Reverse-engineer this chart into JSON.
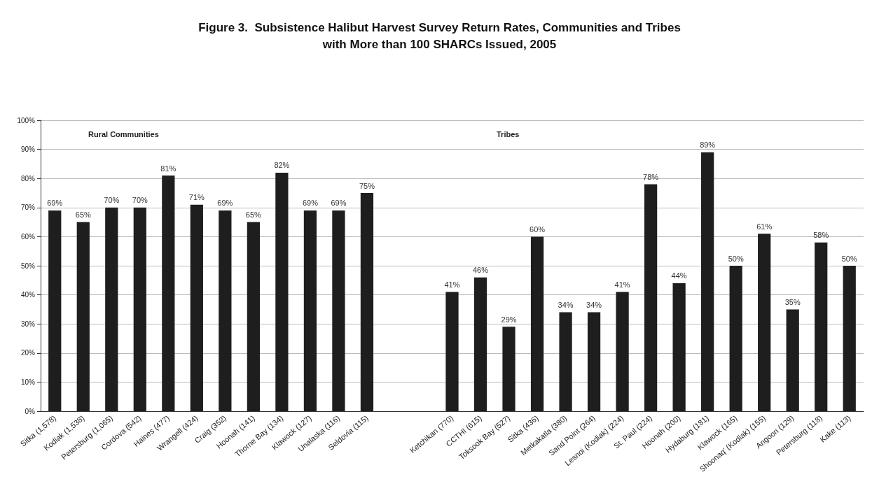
{
  "chart_data": {
    "type": "bar",
    "title": "Figure 3.  Subsistence Halibut Harvest Survey Return Rates, Communities and Tribes\nwith More than 100 SHARCs Issued, 2005",
    "categories": [
      "Sitka (1,578)",
      "Kodiak (1,538)",
      "Petersburg (1,065)",
      "Cordova (542)",
      "Haines (477)",
      "Wrangell (424)",
      "Craig (352)",
      "Hoonah (141)",
      "Thorne Bay (134)",
      "Klawock (127)",
      "Unalaska (116)",
      "Seldovia (115)",
      null,
      null,
      "Ketchikan (770)",
      "CCTHI (615)",
      "Toksook Bay (527)",
      "Sitka (436)",
      "Metkakatla (380)",
      "Sand Point (264)",
      "Lesnoi (Kodiak) (224)",
      "St. Paul (224)",
      "Hoonah (200)",
      "Hydaburg (181)",
      "Klawock (165)",
      "Shoonaq' (Kodiak) (155)",
      "Angoon (129)",
      "Petersburg (118)",
      "Kake (113)"
    ],
    "values": [
      69,
      65,
      70,
      70,
      81,
      71,
      69,
      65,
      82,
      69,
      69,
      75,
      null,
      null,
      41,
      46,
      29,
      60,
      34,
      34,
      41,
      78,
      44,
      89,
      50,
      61,
      35,
      58,
      50
    ],
    "color": "#1e1e1e",
    "ylim": [
      0,
      100
    ],
    "yticks": [
      {
        "value": 0,
        "label": "0%"
      },
      {
        "value": 10,
        "label": "10%"
      },
      {
        "value": 20,
        "label": "20%"
      },
      {
        "value": 30,
        "label": "30%"
      },
      {
        "value": 40,
        "label": "40%"
      },
      {
        "value": 50,
        "label": "50%"
      },
      {
        "value": 60,
        "label": "60%"
      },
      {
        "value": 70,
        "label": "70%"
      },
      {
        "value": 80,
        "label": "80%"
      },
      {
        "value": 90,
        "label": "90%"
      },
      {
        "value": 100,
        "label": "100%"
      }
    ],
    "grid": "y",
    "value_labels": [
      "69%",
      "65%",
      "70%",
      "70%",
      "81%",
      "71%",
      "69%",
      "65%",
      "82%",
      "69%",
      "69%",
      "75%",
      null,
      null,
      "41%",
      "46%",
      "29%",
      "60%",
      "34%",
      "34%",
      "41%",
      "78%",
      "44%",
      "89%",
      "50%",
      "61%",
      "35%",
      "58%",
      "50%"
    ],
    "annotations": [
      "Rural Communities",
      "Tribes"
    ]
  }
}
